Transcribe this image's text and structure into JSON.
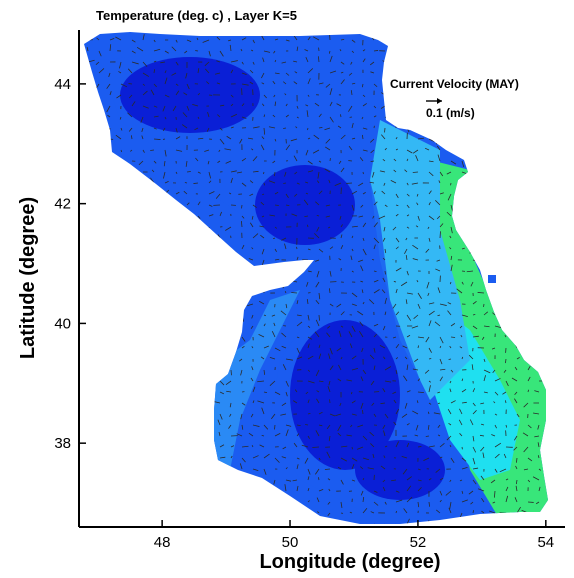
{
  "title": "Temperature (deg. c) , Layer K=5",
  "chart_data": {
    "type": "heatmap",
    "xlabel": "Longitude (degree)",
    "ylabel": "Latitude (degree)",
    "xlim": [
      46.7,
      54.3
    ],
    "ylim": [
      36.6,
      44.9
    ],
    "x_ticks": [
      48,
      50,
      52,
      54
    ],
    "y_ticks": [
      38,
      40,
      42,
      44
    ],
    "legend": {
      "title": "Current Velocity (MAY)",
      "reference_label": "0.1 (m/s)",
      "placement": "top-right"
    }
  },
  "colors": {
    "land": "#ffffff",
    "deep_blue": "#0a1fd6",
    "blue": "#1b5cf0",
    "mid_blue": "#2a8af5",
    "light_blue": "#34b8f5",
    "cyan": "#1fe0f0",
    "green": "#38e67a",
    "vector": "#2a2a2a"
  }
}
